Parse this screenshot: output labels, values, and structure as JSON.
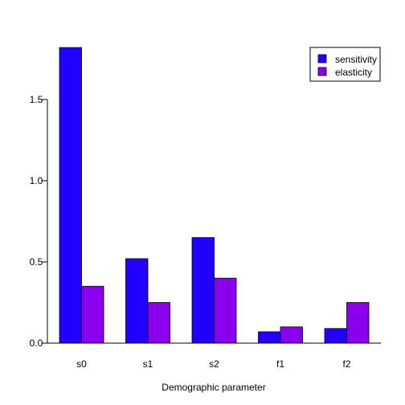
{
  "chart_data": {
    "type": "bar",
    "title": "",
    "xlabel": "Demographic parameter",
    "ylabel": "",
    "ylim": [
      0,
      1.9
    ],
    "yticks": [
      0.0,
      0.5,
      1.0,
      1.5
    ],
    "ytick_labels": [
      "0.0",
      "0.5",
      "1.0",
      "1.5"
    ],
    "categories": [
      "s0",
      "s1",
      "s2",
      "f1",
      "f2"
    ],
    "grid": false,
    "legend_position": "top-right",
    "series": [
      {
        "name": "sensitivity",
        "color": "#2200ff",
        "values": [
          1.82,
          0.52,
          0.65,
          0.07,
          0.09
        ]
      },
      {
        "name": "elasticity",
        "color": "#8a00ee",
        "values": [
          0.35,
          0.25,
          0.4,
          0.1,
          0.25
        ]
      }
    ]
  }
}
